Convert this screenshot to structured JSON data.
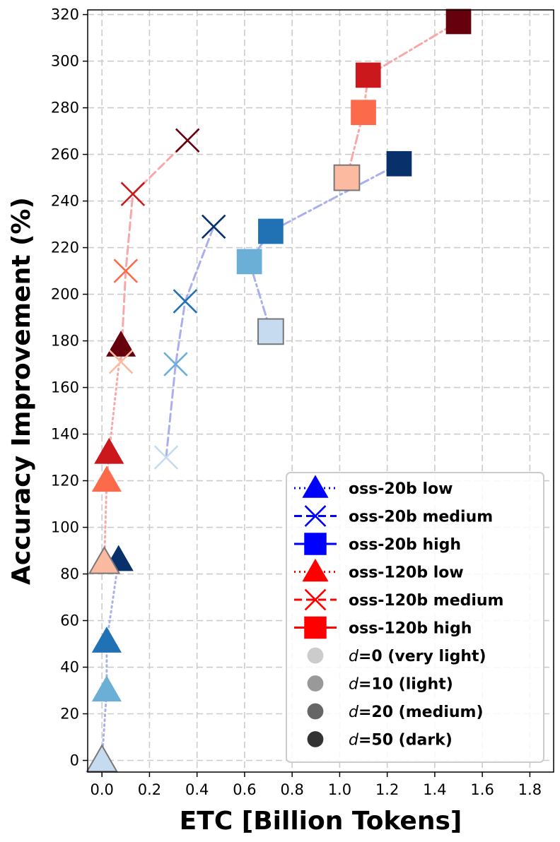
{
  "chart_data": {
    "type": "scatter",
    "xlabel": "ETC [Billion Tokens]",
    "ylabel": "Accuracy Improvement (%)",
    "xlim": [
      -0.06,
      1.9
    ],
    "ylim": [
      -5,
      322
    ],
    "xticks": [
      "0.0",
      "0.2",
      "0.4",
      "0.6",
      "0.8",
      "1.0",
      "1.2",
      "1.4",
      "1.6",
      "1.8"
    ],
    "xtick_values": [
      0.0,
      0.2,
      0.4,
      0.6,
      0.8,
      1.0,
      1.2,
      1.4,
      1.6,
      1.8
    ],
    "yticks": [
      "0",
      "20",
      "40",
      "60",
      "80",
      "100",
      "120",
      "140",
      "160",
      "180",
      "200",
      "220",
      "240",
      "260",
      "280",
      "300",
      "320"
    ],
    "ytick_values": [
      0,
      20,
      40,
      60,
      80,
      100,
      120,
      140,
      160,
      180,
      200,
      220,
      240,
      260,
      280,
      300,
      320
    ],
    "grid": true,
    "legend_position": "bottom-right",
    "colors": {
      "blue": [
        "#c6dbef",
        "#6baed6",
        "#2171b5",
        "#08306b"
      ],
      "red": [
        "#fcbba1",
        "#fb6a4a",
        "#cb181d",
        "#67000d"
      ],
      "blue_line": "#aab0ee",
      "red_line": "#f7a8a8",
      "legend_blue": "#0000ff",
      "legend_red": "#ff0000",
      "legend_grays": [
        "#cccccc",
        "#999999",
        "#666666",
        "#333333"
      ]
    },
    "series": [
      {
        "name": "oss-20b low",
        "model": "oss-20b",
        "effort": "low",
        "marker": "triangle",
        "line": "dotted",
        "color_family": "blue",
        "x": [
          0.0,
          0.02,
          0.02,
          0.07
        ],
        "y": [
          0,
          30,
          51,
          86
        ],
        "d": [
          0,
          10,
          20,
          50
        ]
      },
      {
        "name": "oss-20b medium",
        "model": "oss-20b",
        "effort": "medium",
        "marker": "x",
        "line": "dashed",
        "color_family": "blue",
        "x": [
          0.27,
          0.31,
          0.35,
          0.47
        ],
        "y": [
          130,
          170,
          197,
          229
        ],
        "d": [
          0,
          10,
          20,
          50
        ]
      },
      {
        "name": "oss-20b high",
        "model": "oss-20b",
        "effort": "high",
        "marker": "square",
        "line": "dashdot",
        "color_family": "blue",
        "x": [
          0.71,
          0.62,
          0.71,
          1.25
        ],
        "y": [
          184,
          214,
          227,
          256
        ],
        "d": [
          0,
          10,
          20,
          50
        ]
      },
      {
        "name": "oss-120b low",
        "model": "oss-120b",
        "effort": "low",
        "marker": "triangle",
        "line": "dotted",
        "color_family": "red",
        "x": [
          0.01,
          0.02,
          0.03,
          0.08
        ],
        "y": [
          85,
          120,
          132,
          178
        ],
        "d": [
          0,
          10,
          20,
          50
        ]
      },
      {
        "name": "oss-120b medium",
        "model": "oss-120b",
        "effort": "medium",
        "marker": "x",
        "line": "dashed",
        "color_family": "red",
        "x": [
          0.08,
          0.1,
          0.13,
          0.36
        ],
        "y": [
          171,
          210,
          243,
          266
        ],
        "d": [
          0,
          10,
          20,
          50
        ]
      },
      {
        "name": "oss-120b high",
        "model": "oss-120b",
        "effort": "high",
        "marker": "square",
        "line": "dashdot",
        "color_family": "red",
        "x": [
          1.03,
          1.1,
          1.12,
          1.5
        ],
        "y": [
          250,
          278,
          294,
          317
        ],
        "d": [
          0,
          10,
          20,
          50
        ]
      }
    ],
    "legend": [
      {
        "label": "oss-20b low",
        "marker": "triangle",
        "color": "blue",
        "line": "dotted"
      },
      {
        "label": "oss-20b medium",
        "marker": "x",
        "color": "blue",
        "line": "dashed"
      },
      {
        "label": "oss-20b high",
        "marker": "square",
        "color": "blue",
        "line": "solid"
      },
      {
        "label": "oss-120b low",
        "marker": "triangle",
        "color": "red",
        "line": "dotted"
      },
      {
        "label": "oss-120b medium",
        "marker": "x",
        "color": "red",
        "line": "dashed"
      },
      {
        "label": "oss-120b high",
        "marker": "square",
        "color": "red",
        "line": "solid"
      },
      {
        "label_prefix": "d",
        "label_suffix": "=0 (very light)",
        "marker": "circle",
        "shade": 0
      },
      {
        "label_prefix": "d",
        "label_suffix": "=10 (light)",
        "marker": "circle",
        "shade": 1
      },
      {
        "label_prefix": "d",
        "label_suffix": "=20 (medium)",
        "marker": "circle",
        "shade": 2
      },
      {
        "label_prefix": "d",
        "label_suffix": "=50 (dark)",
        "marker": "circle",
        "shade": 3
      }
    ]
  }
}
